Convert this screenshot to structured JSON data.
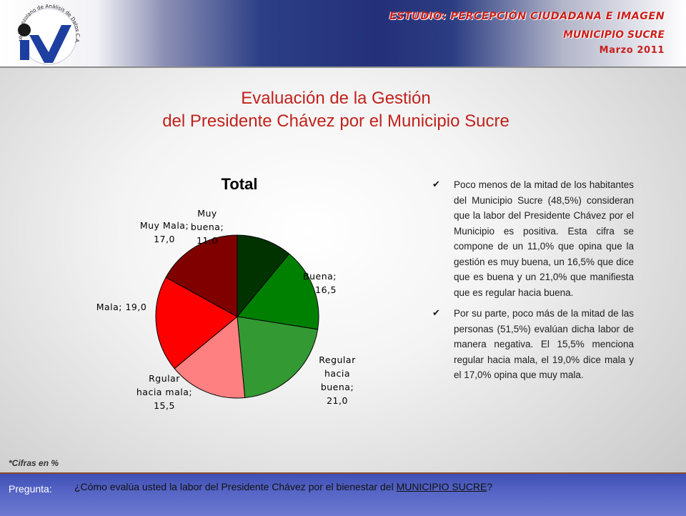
{
  "header": {
    "study": "ESTUDIO: PERCEPCIÓN CIUDADANA E IMAGEN",
    "municipality": "MUNICIPIO SUCRE",
    "date": "Marzo 2011"
  },
  "title": {
    "line1": "Evaluación de la Gestión",
    "line2": "del Presidente Chávez por el Municipio Sucre"
  },
  "chart_data": {
    "type": "pie",
    "title": "Total",
    "slices": [
      {
        "label": [
          "Muy",
          "buena;",
          "11,0"
        ],
        "value": 11.0,
        "color": "#003300"
      },
      {
        "label": [
          "Buena;",
          "16,5"
        ],
        "value": 16.5,
        "color": "#008000"
      },
      {
        "label": [
          "Regular",
          "hacia",
          "buena;",
          "21,0"
        ],
        "value": 21.0,
        "color": "#339933"
      },
      {
        "label": [
          "Rgular",
          "hacia mala;",
          "15,5"
        ],
        "value": 15.5,
        "color": "#ff8080"
      },
      {
        "label": [
          "Mala; 19,0"
        ],
        "value": 19.0,
        "color": "#ff0000"
      },
      {
        "label": [
          "Muy Mala;",
          "17,0"
        ],
        "value": 17.0,
        "color": "#800000"
      }
    ]
  },
  "bullets": [
    "Poco menos de la mitad de los habitantes del Municipio Sucre (48,5%) consideran que la labor del Presidente Chávez por el Municipio es positiva. Esta cifra se compone de un 11,0% que opina que la gestión es muy buena, un 16,5% que dice que es buena y un 21,0% que manifiesta que es regular hacia buena.",
    "Por su parte, poco más de la mitad de las personas (51,5%) evalúan dicha labor de manera negativa. El 15,5% menciona regular hacia mala, el 19,0% dice mala y el 17,0% opina que muy mala."
  ],
  "note": "*Cifras en %",
  "footer": {
    "label": "Pregunta:",
    "question_prefix": "¿Cómo evalúa usted la labor del Presidente Chávez por el bienestar del ",
    "question_link": "MUNICIPIO SUCRE",
    "question_suffix": "?"
  },
  "logo": {
    "org_name": "Instituto Venezolano de Análisis de Datos C.A.",
    "colors": {
      "dot": "#1a1a1a",
      "i": "#1d3fa0",
      "v": "#1d3fa0"
    }
  }
}
